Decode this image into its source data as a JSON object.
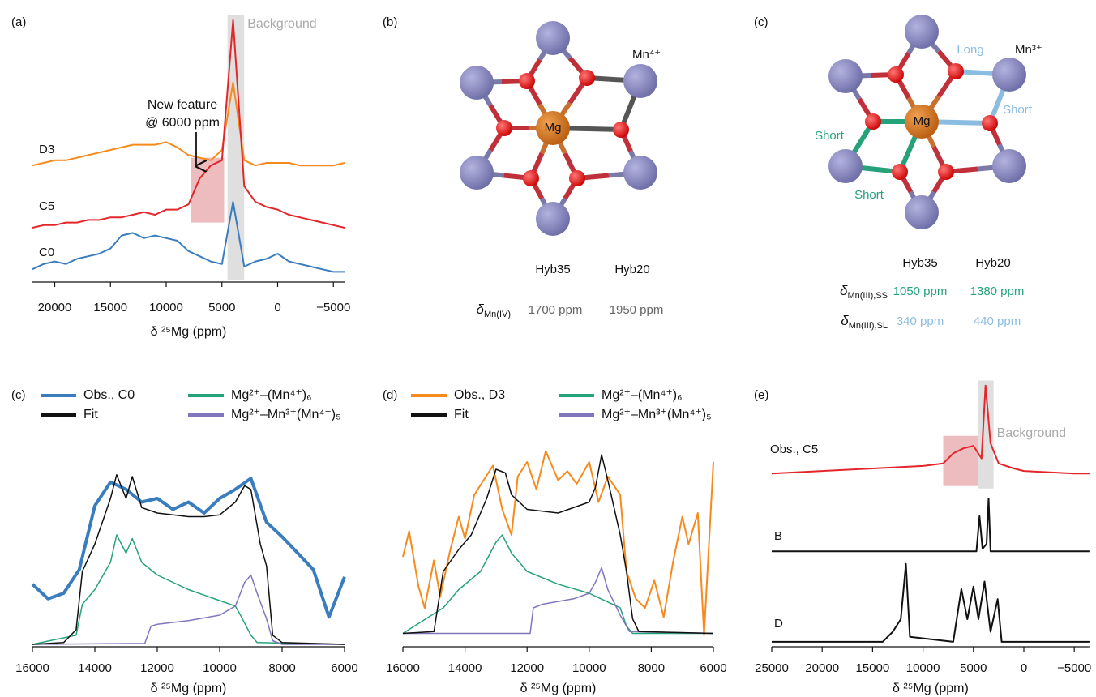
{
  "chart_data": [
    {
      "type": "line",
      "panel": "(a)",
      "xlabel": "δ ²⁵Mg (ppm)",
      "xlim": [
        22000,
        -6000
      ],
      "ylim": [
        0,
        100
      ],
      "xticks": [
        20000,
        15000,
        10000,
        5000,
        0,
        {
          "value": -5000,
          "label": "−5000"
        }
      ],
      "x": [
        22000,
        21000,
        20000,
        19000,
        18000,
        17000,
        16000,
        15000,
        14000,
        13000,
        12000,
        11000,
        10000,
        9000,
        8000,
        7000,
        6000,
        5000,
        4000,
        3000,
        2000,
        1000,
        0,
        -1000,
        -2000,
        -3000,
        -4000,
        -5000,
        -6000
      ],
      "series": [
        {
          "name": "D3",
          "color": "#f78a1d",
          "values": [
            44,
            45,
            46,
            46,
            47,
            48,
            49,
            50,
            51,
            52,
            52,
            52,
            53,
            51,
            48,
            47,
            46,
            50,
            76,
            46,
            44,
            45,
            45,
            45,
            44,
            44,
            44,
            44,
            45
          ]
        },
        {
          "name": "C5",
          "color": "#e3262b",
          "values": [
            20,
            21,
            21,
            22,
            22,
            23,
            23,
            24,
            24,
            25,
            26,
            25,
            27,
            27,
            29,
            39,
            44,
            46,
            100,
            36,
            30,
            28,
            27,
            25,
            24,
            23,
            22,
            21,
            20
          ]
        },
        {
          "name": "C0",
          "color": "#3a7dbf",
          "values": [
            4,
            6,
            7,
            6,
            8,
            9,
            10,
            12,
            17,
            18,
            16,
            17,
            16,
            15,
            11,
            9,
            7,
            6,
            30,
            5,
            7,
            8,
            10,
            7,
            6,
            5,
            4,
            3,
            3
          ]
        }
      ],
      "shaded_regions": [
        {
          "x": [
            4500,
            3000
          ],
          "color": "#d9d9d9",
          "label": "Background"
        },
        {
          "x": [
            7800,
            4800
          ],
          "y": [
            22,
            47
          ],
          "color": "#eab0b3"
        }
      ],
      "annotations": [
        "New feature",
        "@ 6000 ppm"
      ]
    },
    {
      "type": "line",
      "panel": "(c)",
      "xlabel": "δ ²⁵Mg (ppm)",
      "xlim": [
        16000,
        6000
      ],
      "ylim": [
        0,
        110
      ],
      "xticks": [
        16000,
        14000,
        12000,
        10000,
        8000,
        6000
      ],
      "series": [
        {
          "name": "Obs., C0",
          "color": "#3a7dbf",
          "width": 4,
          "x": [
            16000,
            15500,
            15000,
            14500,
            14000,
            13500,
            13000,
            12500,
            12000,
            11500,
            11000,
            10500,
            10000,
            9500,
            9000,
            8500,
            8000,
            7500,
            7000,
            6500,
            6000
          ],
          "values": [
            33,
            25,
            28,
            41,
            76,
            89,
            85,
            78,
            80,
            74,
            78,
            72,
            80,
            85,
            91,
            67,
            59,
            50,
            41,
            15,
            37
          ]
        },
        {
          "name": "Mg²⁺–(Mn⁴⁺)₆",
          "color": "#26a27b",
          "width": 1.5,
          "x": [
            16000,
            14600,
            14400,
            14000,
            13500,
            13300,
            13000,
            12800,
            12500,
            12000,
            11000,
            10000,
            9500,
            9300,
            9000,
            8800,
            6000
          ],
          "values": [
            0,
            5,
            22,
            30,
            45,
            60,
            50,
            58,
            45,
            38,
            30,
            24,
            21,
            15,
            5,
            1,
            0
          ]
        },
        {
          "name": "Mg²⁺–Mn³⁺(Mn⁴⁺)₅",
          "color": "#8076be",
          "width": 1.5,
          "x": [
            16000,
            12400,
            12200,
            12000,
            11000,
            10000,
            9500,
            9200,
            9000,
            8800,
            8500,
            8300,
            8000,
            6000
          ],
          "values": [
            0,
            0.5,
            10,
            11,
            13,
            16,
            21,
            34,
            38,
            28,
            14,
            2,
            0,
            0
          ]
        },
        {
          "name": "Fit",
          "color": "#111111",
          "width": 1.5,
          "x": [
            16000,
            15000,
            14600,
            14400,
            14000,
            13500,
            13300,
            13000,
            12800,
            12500,
            12000,
            11000,
            10500,
            10000,
            9500,
            9200,
            9000,
            8700,
            8500,
            8300,
            8000,
            6000
          ],
          "values": [
            0,
            1,
            8,
            40,
            55,
            80,
            93,
            80,
            92,
            75,
            72,
            70,
            70,
            71,
            78,
            87,
            85,
            55,
            43,
            5,
            1,
            0
          ]
        }
      ]
    },
    {
      "type": "line",
      "panel": "(d)",
      "xlabel": "δ ²⁵Mg (ppm)",
      "xlim": [
        16000,
        6000
      ],
      "ylim": [
        0,
        110
      ],
      "xticks": [
        16000,
        14000,
        12000,
        10000,
        8000,
        6000
      ],
      "series": [
        {
          "name": "Obs., D3",
          "color": "#f78a1d",
          "width": 2,
          "x": [
            16000,
            15800,
            15500,
            15300,
            15000,
            14800,
            14500,
            14200,
            14000,
            13700,
            13400,
            13100,
            12800,
            12500,
            12300,
            12000,
            11700,
            11400,
            11000,
            10700,
            10400,
            10000,
            9700,
            9400,
            9000,
            8800,
            8500,
            8200,
            7900,
            7600,
            7300,
            7000,
            6800,
            6500,
            6300,
            6000
          ],
          "values": [
            48,
            62,
            32,
            20,
            46,
            26,
            50,
            70,
            58,
            82,
            90,
            98,
            74,
            60,
            92,
            100,
            85,
            106,
            90,
            95,
            88,
            100,
            78,
            92,
            82,
            40,
            25,
            20,
            35,
            15,
            45,
            70,
            55,
            72,
            5,
            100
          ]
        },
        {
          "name": "Mg²⁺–(Mn⁴⁺)₆",
          "color": "#26a27b",
          "width": 1.5,
          "x": [
            16000,
            14700,
            14200,
            13500,
            13000,
            12800,
            12500,
            12000,
            11000,
            10000,
            9000,
            8800,
            8600,
            6000
          ],
          "values": [
            6,
            20,
            30,
            40,
            56,
            60,
            50,
            40,
            33,
            28,
            20,
            10,
            6,
            6
          ]
        },
        {
          "name": "Mg²⁺–Mn³⁺(Mn⁴⁺)₅",
          "color": "#8076be",
          "width": 1.5,
          "x": [
            16000,
            11900,
            11800,
            11500,
            10500,
            10000,
            9800,
            9600,
            9400,
            9000,
            8700,
            6000
          ],
          "values": [
            6,
            6,
            20,
            22,
            25,
            28,
            34,
            42,
            30,
            16,
            7,
            6
          ]
        },
        {
          "name": "Fit",
          "color": "#111111",
          "width": 1.5,
          "x": [
            16000,
            15000,
            14700,
            14200,
            13800,
            13300,
            13000,
            12700,
            12500,
            12000,
            11000,
            10000,
            9800,
            9600,
            9400,
            9000,
            8800,
            8600,
            8400,
            6000
          ],
          "values": [
            6,
            7,
            40,
            52,
            60,
            80,
            96,
            94,
            82,
            74,
            72,
            78,
            86,
            104,
            90,
            60,
            40,
            14,
            7,
            6
          ]
        }
      ]
    },
    {
      "type": "line",
      "panel": "(e)",
      "xlabel": "δ ²⁵Mg (ppm)",
      "xlim": [
        25000,
        -6500
      ],
      "ylim": [
        0,
        105
      ],
      "xticks": [
        25000,
        20000,
        15000,
        10000,
        5000,
        0,
        {
          "value": -5000,
          "label": "−5000"
        }
      ],
      "series": [
        {
          "name": "Obs., C5",
          "color": "#e3262b",
          "x": [
            25000,
            20000,
            15000,
            10000,
            8000,
            7000,
            6000,
            5000,
            4200,
            3800,
            3300,
            2500,
            1000,
            0,
            -5000,
            -6500
          ],
          "values": [
            68,
            69,
            70,
            71,
            72,
            76,
            78,
            79,
            74,
            103,
            80,
            72,
            70,
            69,
            68,
            68
          ]
        },
        {
          "name": "B",
          "color": "#111111",
          "x": [
            25000,
            4700,
            4400,
            4100,
            3700,
            3500,
            3300,
            -6500
          ],
          "values": [
            37,
            37,
            51,
            38,
            40,
            58,
            37,
            37
          ]
        },
        {
          "name": "D",
          "color": "#111111",
          "x": [
            25000,
            14000,
            13000,
            12200,
            11700,
            11300,
            7000,
            6200,
            5600,
            5000,
            4500,
            3900,
            3300,
            2600,
            2200,
            -6500
          ],
          "values": [
            1,
            1,
            5,
            10,
            32,
            3,
            1,
            22,
            10,
            23,
            10,
            25,
            5,
            18,
            1,
            1
          ]
        }
      ],
      "shaded_regions": [
        {
          "x": [
            8000,
            4500
          ],
          "y": [
            63,
            83
          ],
          "color": "#eab0b3"
        },
        {
          "x": [
            4500,
            3000
          ],
          "y": [
            62,
            105
          ],
          "color": "#d9d9d9",
          "label": "Background"
        }
      ]
    }
  ],
  "diagrams": {
    "b": {
      "panel": "(b)",
      "center": "Mg",
      "ion": "Mn⁴⁺",
      "columns": [
        "Hyb35",
        "Hyb20"
      ],
      "shift_label": {
        "symbol": "δ",
        "sub": "Mn(IV)"
      },
      "shifts": [
        "1700 ppm",
        "1950 ppm"
      ]
    },
    "c": {
      "panel": "(c)",
      "center": "Mg",
      "ion": "Mn³⁺",
      "bond_labels": [
        "Long",
        "Short",
        "Short",
        "Short"
      ],
      "columns": [
        "Hyb35",
        "Hyb20"
      ],
      "rows": [
        {
          "symbol": "δ",
          "sub": "Mn(III),SS",
          "values": [
            "1050 ppm",
            "1380 ppm"
          ]
        },
        {
          "symbol": "δ",
          "sub": "Mn(III),SL",
          "values": [
            "340 ppm",
            "440 ppm"
          ]
        }
      ]
    }
  }
}
